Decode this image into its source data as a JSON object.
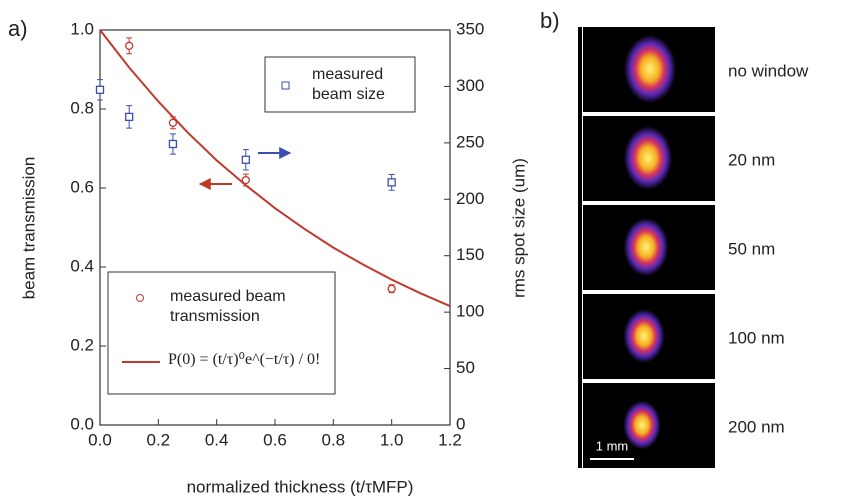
{
  "chart_data": {
    "type": "scatter",
    "panel_labels": [
      "a)",
      "b)"
    ],
    "xlabel": "normalized thickness (t/τMFP)",
    "ylabel": "beam transmission",
    "y2label": "rms spot size (um)",
    "xlim": [
      0,
      1.2
    ],
    "xticks": [
      {
        "value": 0,
        "label": "0.0"
      },
      0.2,
      0.4,
      0.6,
      0.8,
      {
        "value": 1,
        "label": "1.0"
      },
      1.2
    ],
    "ylim": [
      0,
      1
    ],
    "yticks": [
      {
        "value": 0,
        "label": "0.0"
      },
      0.2,
      0.4,
      0.6,
      0.8,
      {
        "value": 1,
        "label": "1.0"
      }
    ],
    "y2lim": [
      0,
      350
    ],
    "y2ticks": [
      0,
      50,
      100,
      150,
      200,
      250,
      300,
      350
    ],
    "series": [
      {
        "name": "measured beam transmission",
        "marker": "circle",
        "color": "#c0392b",
        "x": [
          0.1,
          0.25,
          0.5,
          1
        ],
        "values": [
          0.96,
          0.765,
          0.62,
          0.345
        ],
        "errors": [
          0.02,
          0.015,
          0.015,
          0.01
        ]
      },
      {
        "name": "P(0) = (t/τ)⁰e^(−t/τ) / 0!",
        "marker": "line",
        "color": "#c0392b",
        "x": [
          0,
          0.1,
          0.2,
          0.3,
          0.4,
          0.5,
          0.6,
          0.7,
          0.8,
          0.9,
          1,
          1.1,
          1.2
        ],
        "values": [
          1,
          0.905,
          0.819,
          0.741,
          0.67,
          0.607,
          0.549,
          0.497,
          0.449,
          0.407,
          0.368,
          0.333,
          0.301
        ]
      },
      {
        "name": "measured beam size",
        "marker": "square",
        "color": "#3b4fb0",
        "axis": "y2",
        "x": [
          0,
          0.1,
          0.25,
          0.5,
          1
        ],
        "values": [
          297,
          273,
          249,
          235,
          215
        ],
        "errors": [
          9,
          10,
          9,
          9,
          7
        ]
      }
    ],
    "images": {
      "labels": [
        "no window",
        "20 nm",
        "50 nm",
        "100 nm",
        "200 nm"
      ],
      "scale_bar": "1 mm"
    }
  }
}
